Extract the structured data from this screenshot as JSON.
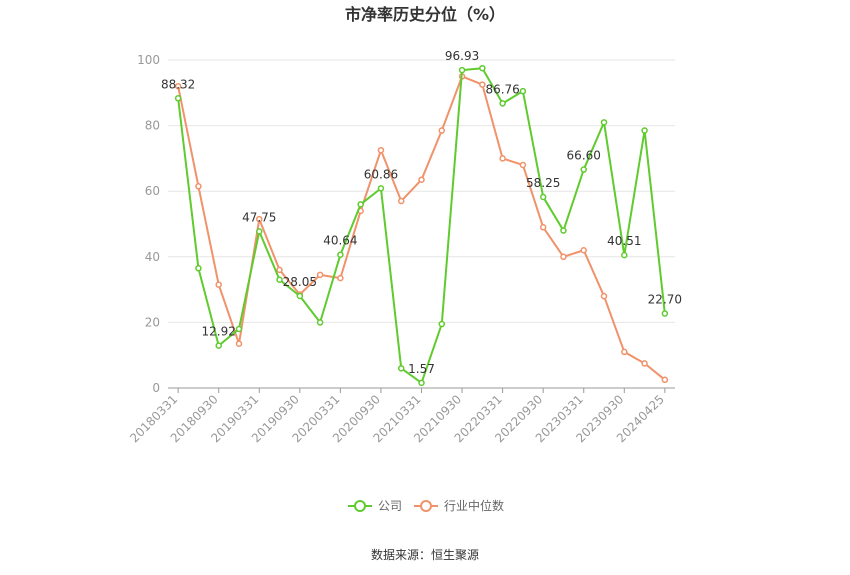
{
  "chart_data": {
    "type": "line",
    "title": "市净率历史分位（%）",
    "xlabel": "",
    "ylabel": "",
    "ylim": [
      0,
      100
    ],
    "yticks": [
      0,
      20,
      40,
      60,
      80,
      100
    ],
    "grid": true,
    "legend_position": "bottom",
    "x": [
      "20180331",
      "20180630",
      "20180930",
      "20181231",
      "20190331",
      "20190630",
      "20190930",
      "20191231",
      "20200331",
      "20200630",
      "20200930",
      "20201231",
      "20210331",
      "20210630",
      "20210930",
      "20211231",
      "20220331",
      "20220630",
      "20220930",
      "20221231",
      "20230331",
      "20230630",
      "20230930",
      "20231231",
      "20240425"
    ],
    "x_tick_labels": [
      "20180331",
      "20180930",
      "20190331",
      "20190930",
      "20200331",
      "20200930",
      "20210331",
      "20210930",
      "20220331",
      "20220930",
      "20230331",
      "20230930",
      "20240425"
    ],
    "series": [
      {
        "name": "公司",
        "color": "#5fcb2e",
        "values": [
          88.32,
          36.5,
          12.92,
          18.0,
          47.75,
          33.0,
          28.05,
          20.0,
          40.64,
          56.0,
          60.86,
          6.0,
          1.57,
          19.5,
          96.93,
          97.5,
          86.76,
          90.5,
          58.25,
          48.0,
          66.6,
          81.0,
          40.51,
          78.5,
          22.7
        ],
        "labels": [
          "88.32",
          "",
          "12.92",
          "",
          "47.75",
          "",
          "28.05",
          "",
          "40.64",
          "",
          "60.86",
          "",
          "1.57",
          "",
          "96.93",
          "",
          "86.76",
          "",
          "58.25",
          "",
          "66.60",
          "",
          "40.51",
          "",
          "22.70"
        ]
      },
      {
        "name": "行业中位数",
        "color": "#f0926a",
        "values": [
          92.0,
          61.5,
          31.5,
          13.5,
          51.5,
          36.0,
          28.5,
          34.5,
          33.5,
          54.0,
          72.5,
          57.0,
          63.5,
          78.5,
          95.0,
          92.5,
          70.0,
          68.0,
          49.0,
          40.0,
          42.0,
          28.0,
          11.0,
          7.5,
          2.5
        ]
      }
    ]
  },
  "source_text": "数据来源：恒生聚源"
}
